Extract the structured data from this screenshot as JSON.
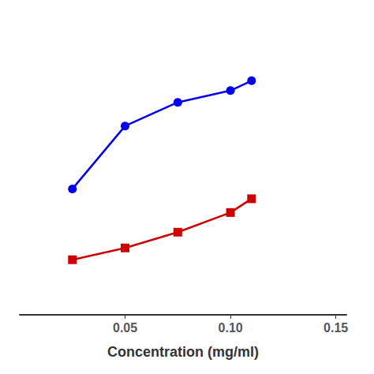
{
  "chart_data": {
    "type": "line",
    "x": [
      0.025,
      0.05,
      0.075,
      0.1,
      0.11
    ],
    "series": [
      {
        "color": "#0000ee",
        "marker": "circle",
        "values": [
          3.2,
          4.8,
          5.4,
          5.7,
          5.95
        ]
      },
      {
        "color": "#cc0000",
        "marker": "square",
        "values": [
          1.4,
          1.7,
          2.1,
          2.6,
          2.95
        ]
      }
    ],
    "xlabel": "Concentration (mg/ml)",
    "xlim": [
      0.0,
      0.155
    ],
    "xticks": [
      0.05,
      {
        "value": 0.1,
        "label": "0.10"
      },
      0.15
    ],
    "ylim": [
      0.0,
      7.5
    ],
    "tick_labels": "x",
    "grid": false
  }
}
